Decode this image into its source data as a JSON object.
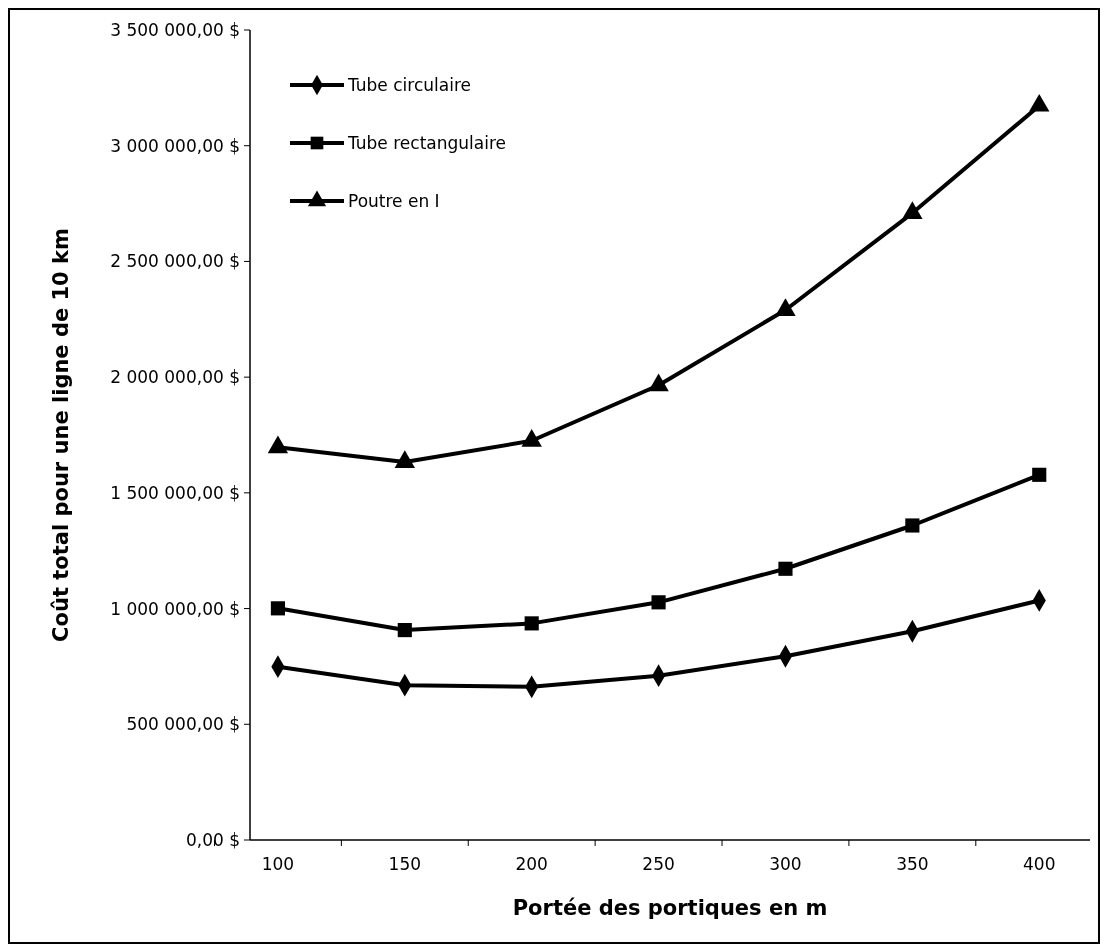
{
  "chart_data": {
    "type": "line",
    "xlabel": "Portée des portiques en m",
    "ylabel": "Coût total pour une ligne de 10 km",
    "categories": [
      "100",
      "150",
      "200",
      "250",
      "300",
      "350",
      "400"
    ],
    "ylim": [
      0,
      3500000
    ],
    "yticks": [
      {
        "value": 0,
        "label": "0,00 $"
      },
      {
        "value": 500000,
        "label": "500 000,00 $"
      },
      {
        "value": 1000000,
        "label": "1 000 000,00 $"
      },
      {
        "value": 1500000,
        "label": "1 500 000,00 $"
      },
      {
        "value": 2000000,
        "label": "2 000 000,00 $"
      },
      {
        "value": 2500000,
        "label": "2 500 000,00 $"
      },
      {
        "value": 3000000,
        "label": "3 000 000,00 $"
      },
      {
        "value": 3500000,
        "label": "3 500 000,00 $"
      }
    ],
    "grid": false,
    "legend": "top left",
    "line_style": "solid",
    "series": [
      {
        "name": "Tube circulaire",
        "color": "#000000",
        "marker": "diamond",
        "values": [
          749000,
          669000,
          662000,
          710000,
          794000,
          902000,
          1035000
        ]
      },
      {
        "name": "Tube rectangulaire",
        "color": "#000000",
        "marker": "square",
        "values": [
          1001000,
          907000,
          936000,
          1027000,
          1172000,
          1359000,
          1578000
        ]
      },
      {
        "name": "Poutre en I",
        "color": "#000000",
        "marker": "triangle",
        "values": [
          1697000,
          1633000,
          1725000,
          1965000,
          2290000,
          2709000,
          3173000
        ]
      }
    ]
  }
}
